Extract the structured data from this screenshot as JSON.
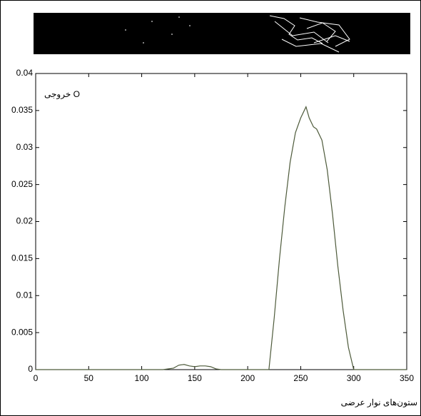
{
  "chart_data": {
    "type": "line",
    "annotation": "خروجی O",
    "x_label": "ستون‌های نوار عرضی",
    "x": [
      0,
      110,
      120,
      130,
      135,
      140,
      145,
      150,
      155,
      160,
      165,
      170,
      175,
      180,
      220,
      225,
      230,
      235,
      240,
      245,
      250,
      255,
      258,
      262,
      265,
      270,
      275,
      280,
      285,
      290,
      295,
      300,
      350
    ],
    "series": [
      {
        "color": "#4d5a3a",
        "values": [
          0,
          0,
          0,
          0.0002,
          0.0006,
          0.0007,
          0.0005,
          0.0004,
          0.0005,
          0.0005,
          0.0004,
          0.0001,
          0,
          0,
          0,
          0.007,
          0.015,
          0.022,
          0.028,
          0.032,
          0.034,
          0.0355,
          0.034,
          0.0328,
          0.0325,
          0.031,
          0.027,
          0.021,
          0.014,
          0.008,
          0.003,
          0,
          0
        ]
      }
    ],
    "xlim": [
      0,
      350
    ],
    "xticks": [
      0,
      50,
      100,
      150,
      200,
      250,
      300,
      350
    ],
    "ylim": [
      0,
      0.04
    ],
    "yticks": [
      0,
      0.005,
      0.01,
      0.015,
      0.02,
      0.025,
      0.03,
      0.035,
      0.04
    ]
  }
}
